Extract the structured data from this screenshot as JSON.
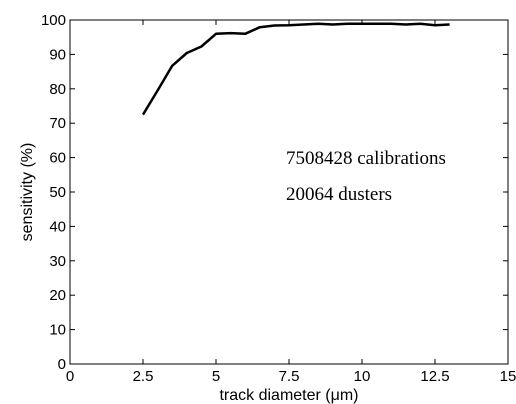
{
  "chart_data": {
    "type": "line",
    "xlabel": "track diameter (μm)",
    "ylabel": "sensitivity (%)",
    "xlim": [
      0,
      15
    ],
    "ylim": [
      0,
      100
    ],
    "xticks": [
      "0",
      "2.5",
      "5",
      "7.5",
      "10",
      "12.5",
      "15"
    ],
    "yticks": [
      "0",
      "10",
      "20",
      "30",
      "40",
      "50",
      "60",
      "70",
      "80",
      "90",
      "100"
    ],
    "grid": false,
    "annotations": [
      "7508428 calibrations",
      "20064 dusters"
    ],
    "series": [
      {
        "color": "#000000",
        "x": [
          2.5,
          3.0,
          3.5,
          4.0,
          4.5,
          5.0,
          5.5,
          6.0,
          6.5,
          7.0,
          7.5,
          8.0,
          8.5,
          9.0,
          9.5,
          10.0,
          10.5,
          11.0,
          11.5,
          12.0,
          12.5,
          13.0
        ],
        "y": [
          72.5,
          79.5,
          86.7,
          90.4,
          92.3,
          96.0,
          96.2,
          96.0,
          97.9,
          98.4,
          98.5,
          98.7,
          98.9,
          98.7,
          98.9,
          98.9,
          98.9,
          98.9,
          98.7,
          98.9,
          98.5,
          98.7
        ]
      }
    ]
  }
}
